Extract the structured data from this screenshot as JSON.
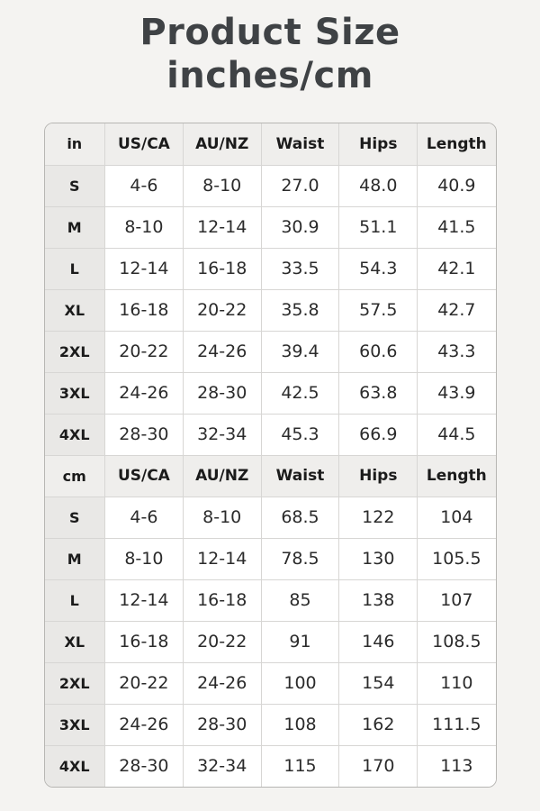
{
  "title": {
    "line1": "Product Size",
    "line2": "inches/cm"
  },
  "colors": {
    "page_bg": "#f4f3f1",
    "header_bg": "#efeeec",
    "size_col_bg": "#e9e8e6",
    "cell_bg": "#ffffff",
    "inner_border": "#d7d6d4",
    "outer_border": "#b7b6b3",
    "title_text": "#3f4245",
    "cell_text": "#2b2b2b"
  },
  "table": {
    "sections": [
      {
        "unit": "in",
        "headers": [
          "in",
          "US/CA",
          "AU/NZ",
          "Waist",
          "Hips",
          "Length"
        ],
        "rows": [
          [
            "S",
            "4-6",
            "8-10",
            "27.0",
            "48.0",
            "40.9"
          ],
          [
            "M",
            "8-10",
            "12-14",
            "30.9",
            "51.1",
            "41.5"
          ],
          [
            "L",
            "12-14",
            "16-18",
            "33.5",
            "54.3",
            "42.1"
          ],
          [
            "XL",
            "16-18",
            "20-22",
            "35.8",
            "57.5",
            "42.7"
          ],
          [
            "2XL",
            "20-22",
            "24-26",
            "39.4",
            "60.6",
            "43.3"
          ],
          [
            "3XL",
            "24-26",
            "28-30",
            "42.5",
            "63.8",
            "43.9"
          ],
          [
            "4XL",
            "28-30",
            "32-34",
            "45.3",
            "66.9",
            "44.5"
          ]
        ]
      },
      {
        "unit": "cm",
        "headers": [
          "cm",
          "US/CA",
          "AU/NZ",
          "Waist",
          "Hips",
          "Length"
        ],
        "rows": [
          [
            "S",
            "4-6",
            "8-10",
            "68.5",
            "122",
            "104"
          ],
          [
            "M",
            "8-10",
            "12-14",
            "78.5",
            "130",
            "105.5"
          ],
          [
            "L",
            "12-14",
            "16-18",
            "85",
            "138",
            "107"
          ],
          [
            "XL",
            "16-18",
            "20-22",
            "91",
            "146",
            "108.5"
          ],
          [
            "2XL",
            "20-22",
            "24-26",
            "100",
            "154",
            "110"
          ],
          [
            "3XL",
            "24-26",
            "28-30",
            "108",
            "162",
            "111.5"
          ],
          [
            "4XL",
            "28-30",
            "32-34",
            "115",
            "170",
            "113"
          ]
        ]
      }
    ]
  }
}
